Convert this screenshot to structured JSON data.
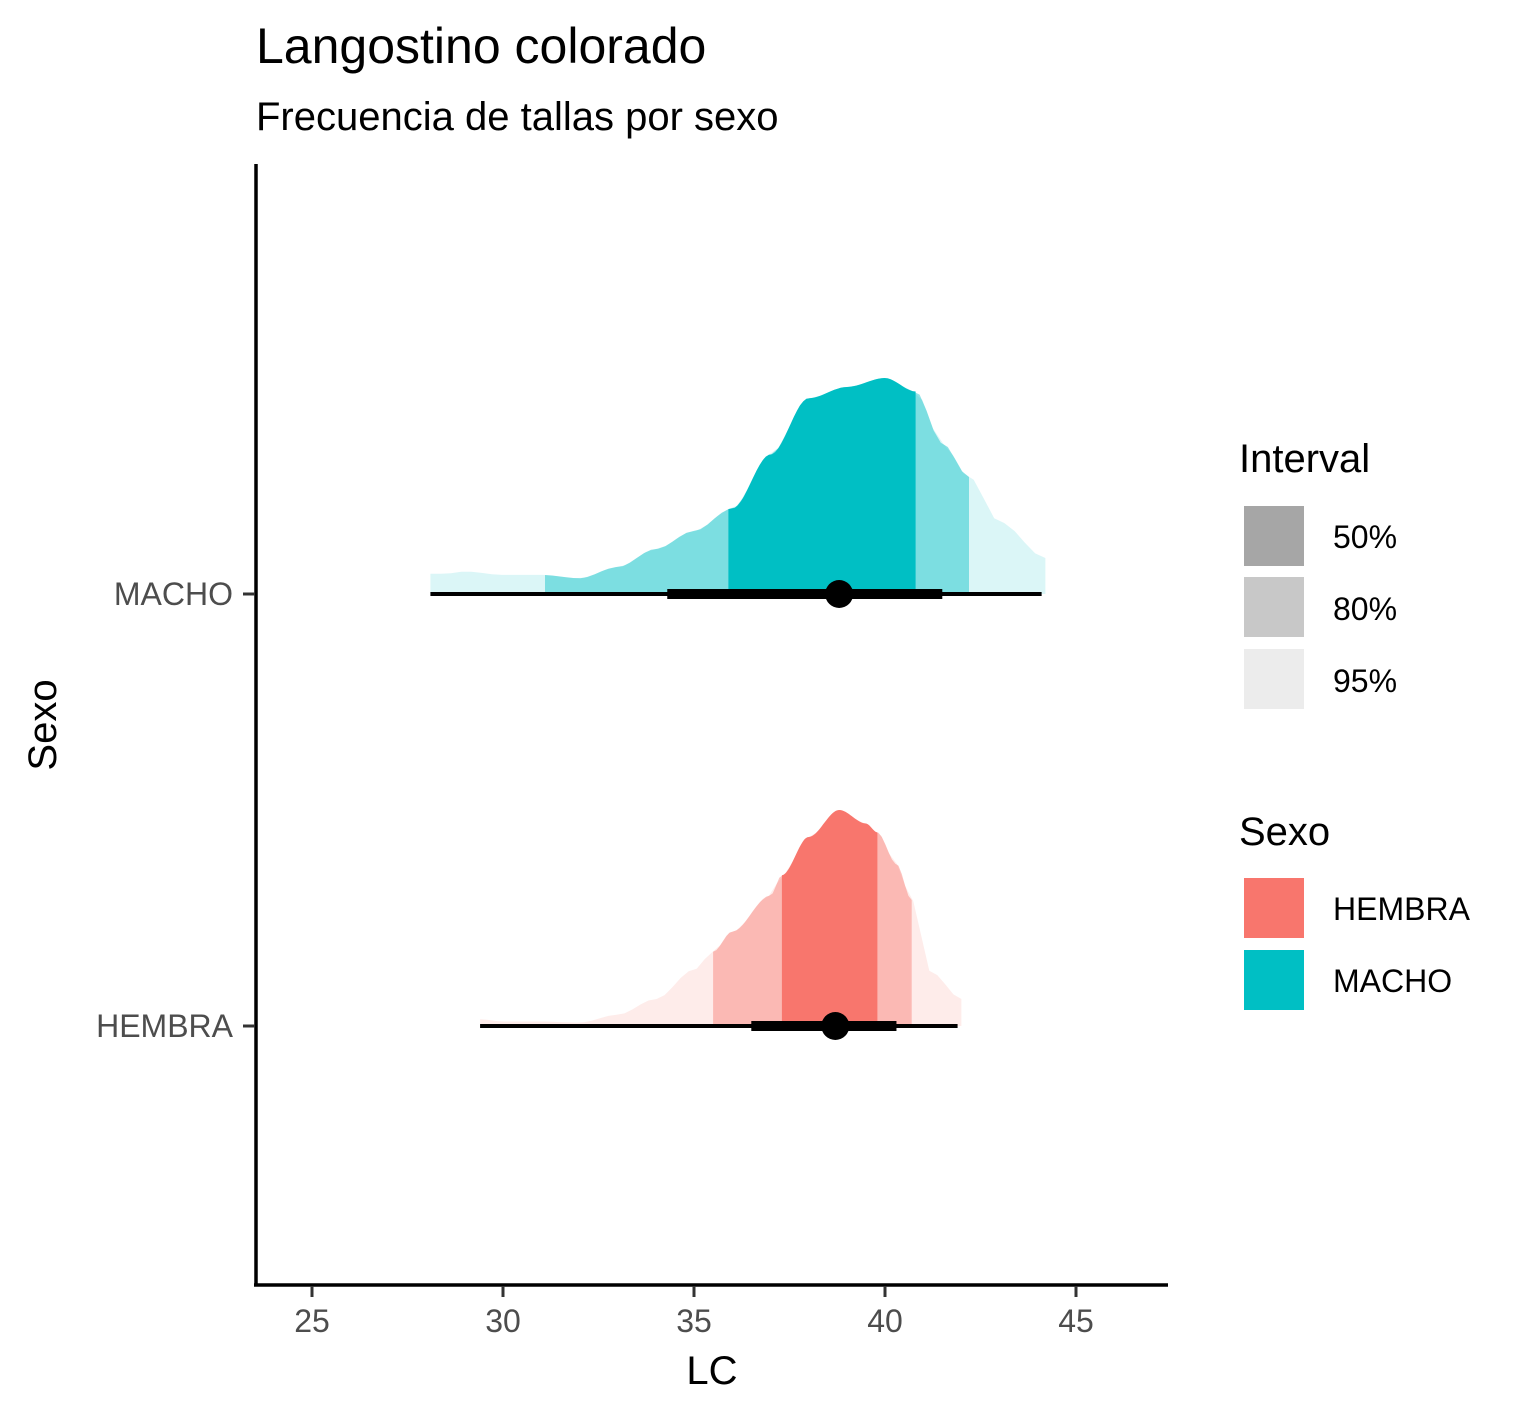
{
  "chart_data": {
    "type": "halfeye",
    "title": "Langostino colorado",
    "subtitle": "Frecuencia de tallas por sexo",
    "xlabel": "LC",
    "ylabel": "Sexo",
    "xlim": [
      23.5,
      47.5
    ],
    "x_ticks": [
      25,
      30,
      35,
      40,
      45
    ],
    "categories": [
      "MACHO",
      "HEMBRA"
    ],
    "series": [
      {
        "name": "MACHO",
        "color": "#00BFC4",
        "density": [
          [
            28.1,
            0.09
          ],
          [
            28.5,
            0.09
          ],
          [
            29.0,
            0.1
          ],
          [
            30.0,
            0.085
          ],
          [
            31.0,
            0.085
          ],
          [
            32.0,
            0.07
          ],
          [
            33.0,
            0.12
          ],
          [
            34.0,
            0.2
          ],
          [
            35.0,
            0.28
          ],
          [
            36.0,
            0.38
          ],
          [
            37.0,
            0.62
          ],
          [
            38.0,
            0.87
          ],
          [
            39.0,
            0.92
          ],
          [
            40.0,
            0.96
          ],
          [
            40.8,
            0.9
          ],
          [
            41.5,
            0.67
          ],
          [
            42.2,
            0.52
          ],
          [
            43.0,
            0.32
          ],
          [
            44.2,
            0.16
          ]
        ],
        "point": 38.8,
        "interval_66": [
          34.3,
          41.5
        ],
        "interval_95": [
          28.1,
          44.1
        ],
        "interval_bounds": {
          "50%": [
            35.9,
            40.8
          ],
          "80%": [
            31.1,
            42.2
          ],
          "95%": [
            28.1,
            44.2
          ]
        }
      },
      {
        "name": "HEMBRA",
        "color": "#F8766D",
        "density": [
          [
            29.4,
            0.03
          ],
          [
            30.0,
            0.02
          ],
          [
            31.0,
            0.02
          ],
          [
            32.0,
            0.015
          ],
          [
            33.0,
            0.05
          ],
          [
            34.0,
            0.12
          ],
          [
            35.0,
            0.25
          ],
          [
            35.5,
            0.33
          ],
          [
            36.0,
            0.42
          ],
          [
            37.0,
            0.58
          ],
          [
            37.3,
            0.67
          ],
          [
            38.0,
            0.84
          ],
          [
            38.8,
            0.96
          ],
          [
            39.5,
            0.9
          ],
          [
            39.8,
            0.86
          ],
          [
            40.3,
            0.72
          ],
          [
            40.7,
            0.56
          ],
          [
            41.2,
            0.24
          ],
          [
            42.0,
            0.12
          ]
        ],
        "point": 38.7,
        "interval_66": [
          36.5,
          40.3
        ],
        "interval_95": [
          29.4,
          41.9
        ],
        "interval_bounds": {
          "50%": [
            37.3,
            39.8
          ],
          "80%": [
            35.5,
            40.7
          ],
          "95%": [
            29.4,
            42.0
          ]
        }
      }
    ],
    "interval_opacity": {
      "50%": 1.0,
      "80%": 0.43,
      "95%": 0.14
    },
    "grid": false,
    "legend_position": "right",
    "legends": [
      {
        "title": "Interval",
        "entries": [
          {
            "label": "50%",
            "color": "#a6a6a6"
          },
          {
            "label": "80%",
            "color": "#c8c8c8"
          },
          {
            "label": "95%",
            "color": "#ececec"
          }
        ]
      },
      {
        "title": "Sexo",
        "entries": [
          {
            "label": "HEMBRA",
            "color": "#F8766D"
          },
          {
            "label": "MACHO",
            "color": "#00BFC4"
          }
        ]
      }
    ]
  }
}
